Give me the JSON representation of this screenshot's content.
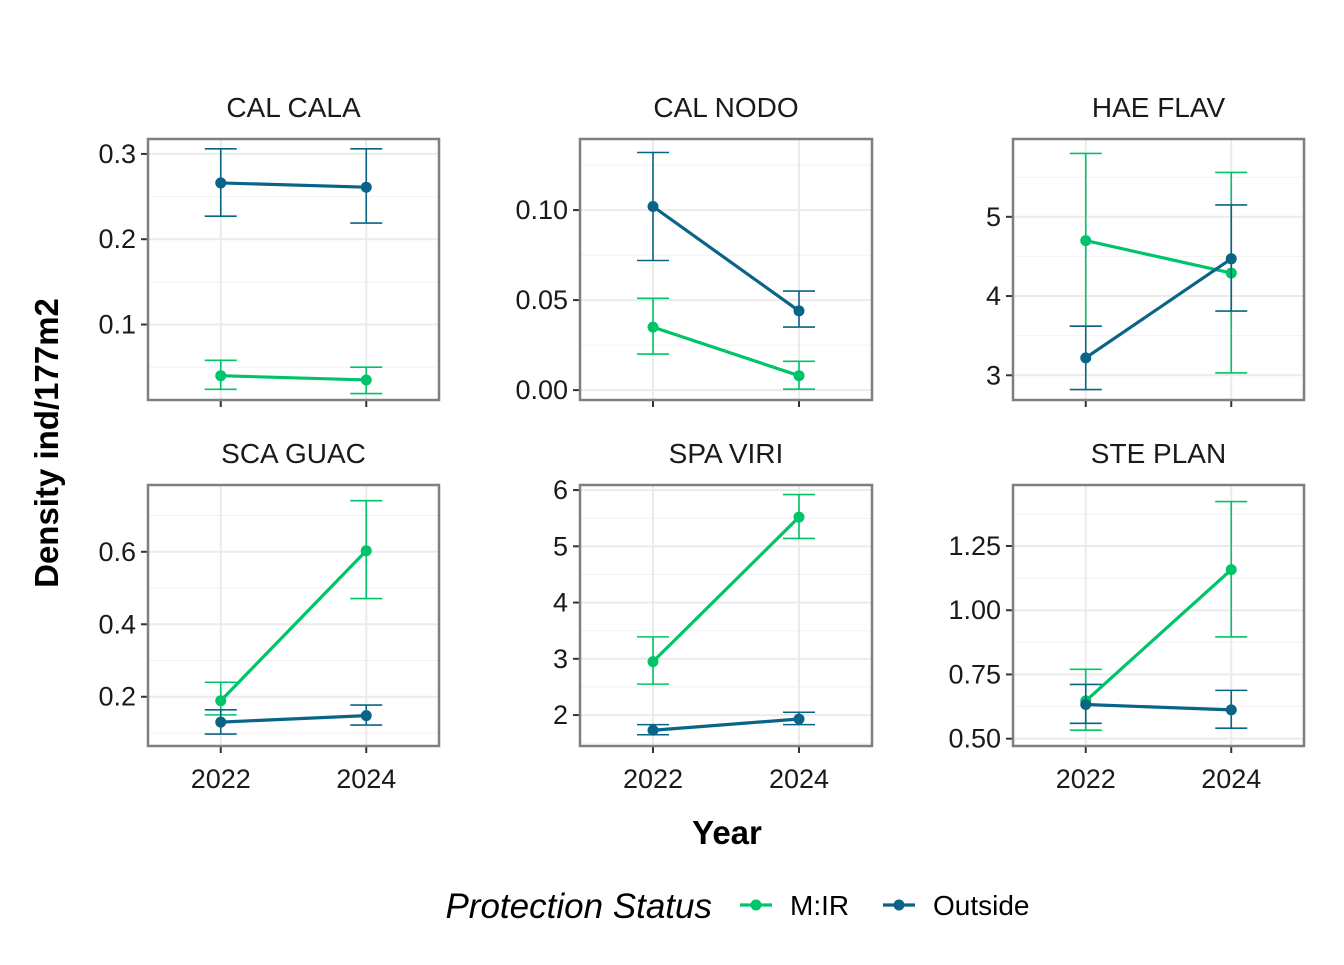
{
  "chart_data": {
    "type": "line",
    "xlabel": "Year",
    "ylabel": "Density ind/177m2",
    "x": [
      2022,
      2024
    ],
    "x_tick_labels": [
      "2022",
      "2024"
    ],
    "grid": true,
    "legend": {
      "title": "Protection Status",
      "position": "bottom",
      "entries": [
        {
          "name": "M:IR",
          "color": "#00C46A"
        },
        {
          "name": "Outside",
          "color": "#0A6487"
        }
      ]
    },
    "facets": [
      {
        "title": "CAL CALA",
        "ylim": [
          0.0115,
          0.3175
        ],
        "yticks": [
          0.1,
          0.2,
          0.3
        ],
        "ytick_labels": [
          "0.1",
          "0.2",
          "0.3"
        ],
        "series": [
          {
            "name": "M:IR",
            "values": [
              0.04,
              0.035
            ],
            "lower": [
              0.024,
              0.019
            ],
            "upper": [
              0.058,
              0.05
            ]
          },
          {
            "name": "Outside",
            "values": [
              0.266,
              0.261
            ],
            "upper": [
              0.306,
              0.306
            ],
            "lower": [
              0.227,
              0.219
            ]
          }
        ]
      },
      {
        "title": "CAL NODO",
        "ylim": [
          -0.0055,
          0.1395
        ],
        "yticks": [
          0.0,
          0.05,
          0.1
        ],
        "ytick_labels": [
          "0.00",
          "0.05",
          "0.10"
        ],
        "series": [
          {
            "name": "M:IR",
            "values": [
              0.035,
              0.008
            ],
            "lower": [
              0.02,
              0.0005
            ],
            "upper": [
              0.051,
              0.016
            ]
          },
          {
            "name": "Outside",
            "values": [
              0.102,
              0.044
            ],
            "upper": [
              0.132,
              0.055
            ],
            "lower": [
              0.072,
              0.035
            ]
          }
        ]
      },
      {
        "title": "HAE FLAV",
        "ylim": [
          2.688,
          5.982
        ],
        "yticks": [
          3,
          4,
          5
        ],
        "ytick_labels": [
          "3",
          "4",
          "5"
        ],
        "series": [
          {
            "name": "M:IR",
            "values": [
              4.7,
              4.29
            ],
            "upper": [
              5.8,
              5.56
            ],
            "lower": [
              3.62,
              3.03
            ]
          },
          {
            "name": "Outside",
            "values": [
              3.22,
              4.47
            ],
            "upper": [
              3.62,
              5.15
            ],
            "lower": [
              2.82,
              3.81
            ]
          }
        ]
      },
      {
        "title": "SCA GUAC",
        "ylim": [
          0.0641,
          0.7843
        ],
        "yticks": [
          0.2,
          0.4,
          0.6
        ],
        "ytick_labels": [
          "0.2",
          "0.4",
          "0.6"
        ],
        "series": [
          {
            "name": "M:IR",
            "values": [
              0.189,
              0.603
            ],
            "upper": [
              0.24,
              0.741
            ],
            "lower": [
              0.15,
              0.471
            ]
          },
          {
            "name": "Outside",
            "values": [
              0.13,
              0.148
            ],
            "upper": [
              0.164,
              0.177
            ],
            "lower": [
              0.097,
              0.122
            ]
          }
        ]
      },
      {
        "title": "SPA VIRI",
        "ylim": [
          1.45,
          6.09
        ],
        "yticks": [
          2,
          3,
          4,
          5,
          6
        ],
        "ytick_labels": [
          "2",
          "3",
          "4",
          "5",
          "6"
        ],
        "series": [
          {
            "name": "M:IR",
            "values": [
              2.95,
              5.52
            ],
            "upper": [
              3.39,
              5.92
            ],
            "lower": [
              2.55,
              5.14
            ]
          },
          {
            "name": "Outside",
            "values": [
              1.73,
              1.93
            ],
            "upper": [
              1.83,
              2.05
            ],
            "lower": [
              1.65,
              1.83
            ]
          }
        ]
      },
      {
        "title": "STE PLAN",
        "ylim": [
          0.4715,
          1.4875
        ],
        "yticks": [
          0.5,
          0.75,
          1.0,
          1.25
        ],
        "ytick_labels": [
          "0.50",
          "0.75",
          "1.00",
          "1.25"
        ],
        "series": [
          {
            "name": "M:IR",
            "values": [
              0.647,
              1.158
            ],
            "upper": [
              0.77,
              1.423
            ],
            "lower": [
              0.533,
              0.896
            ]
          },
          {
            "name": "Outside",
            "values": [
              0.633,
              0.612
            ],
            "upper": [
              0.711,
              0.688
            ],
            "lower": [
              0.56,
              0.541
            ]
          }
        ]
      }
    ]
  }
}
